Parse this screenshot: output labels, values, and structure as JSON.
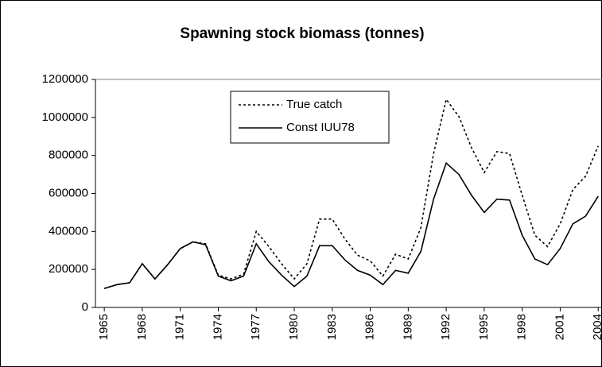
{
  "chart_data": {
    "type": "line",
    "title": "Spawning stock biomass (tonnes)",
    "x": [
      1965,
      1966,
      1967,
      1968,
      1969,
      1970,
      1971,
      1972,
      1973,
      1974,
      1975,
      1976,
      1977,
      1978,
      1979,
      1980,
      1981,
      1982,
      1983,
      1984,
      1985,
      1986,
      1987,
      1988,
      1989,
      1990,
      1991,
      1992,
      1993,
      1994,
      1995,
      1996,
      1997,
      1998,
      1999,
      2000,
      2001,
      2002,
      2003,
      2004
    ],
    "series": [
      {
        "name": "True catch",
        "color": "#000000",
        "dash": "dotted",
        "values": [
          100000,
          120000,
          130000,
          230000,
          150000,
          225000,
          310000,
          345000,
          335000,
          170000,
          150000,
          175000,
          400000,
          320000,
          230000,
          150000,
          230000,
          465000,
          465000,
          360000,
          275000,
          245000,
          165000,
          280000,
          255000,
          420000,
          810000,
          1095000,
          1005000,
          840000,
          710000,
          820000,
          810000,
          590000,
          380000,
          320000,
          440000,
          620000,
          690000,
          850000
        ]
      },
      {
        "name": "Const IUU78",
        "color": "#000000",
        "dash": "solid",
        "values": [
          100000,
          120000,
          130000,
          230000,
          150000,
          225000,
          310000,
          345000,
          330000,
          165000,
          140000,
          165000,
          335000,
          240000,
          170000,
          110000,
          165000,
          325000,
          325000,
          250000,
          195000,
          170000,
          120000,
          195000,
          180000,
          295000,
          570000,
          760000,
          700000,
          590000,
          500000,
          570000,
          565000,
          380000,
          255000,
          225000,
          310000,
          440000,
          480000,
          585000
        ]
      }
    ],
    "xlim": [
      1964.3,
      2004.3
    ],
    "xticks": [
      1965,
      1968,
      1971,
      1974,
      1977,
      1980,
      1983,
      1986,
      1989,
      1992,
      1995,
      1998,
      2001,
      2004
    ],
    "ylim": [
      0,
      1200000
    ],
    "yticks": [
      0,
      200000,
      400000,
      600000,
      800000,
      1000000,
      1200000
    ],
    "grid": false,
    "legend": "top"
  }
}
